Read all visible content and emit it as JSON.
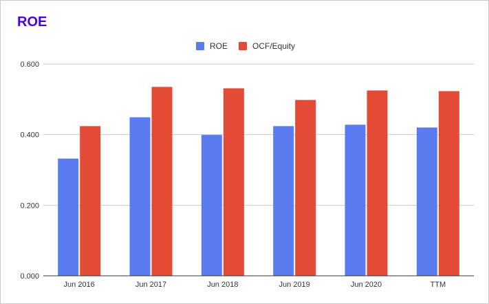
{
  "chart_data": {
    "type": "bar",
    "title": "ROE",
    "categories": [
      "Jun 2016",
      "Jun 2017",
      "Jun 2018",
      "Jun 2019",
      "Jun 2020",
      "TTM"
    ],
    "series": [
      {
        "name": "ROE",
        "color": "#5b7cf0",
        "values": [
          0.332,
          0.449,
          0.399,
          0.424,
          0.428,
          0.42
        ]
      },
      {
        "name": "OCF/Equity",
        "color": "#e34b37",
        "values": [
          0.424,
          0.535,
          0.531,
          0.498,
          0.525,
          0.523
        ]
      }
    ],
    "y_ticks": [
      0.0,
      0.2,
      0.4,
      0.6
    ],
    "y_tick_labels": [
      "0.000",
      "0.200",
      "0.400",
      "0.600"
    ],
    "ylim": [
      0,
      0.6
    ],
    "xlabel": "",
    "ylabel": "",
    "legend_position": "top-center",
    "gridlines": true
  }
}
